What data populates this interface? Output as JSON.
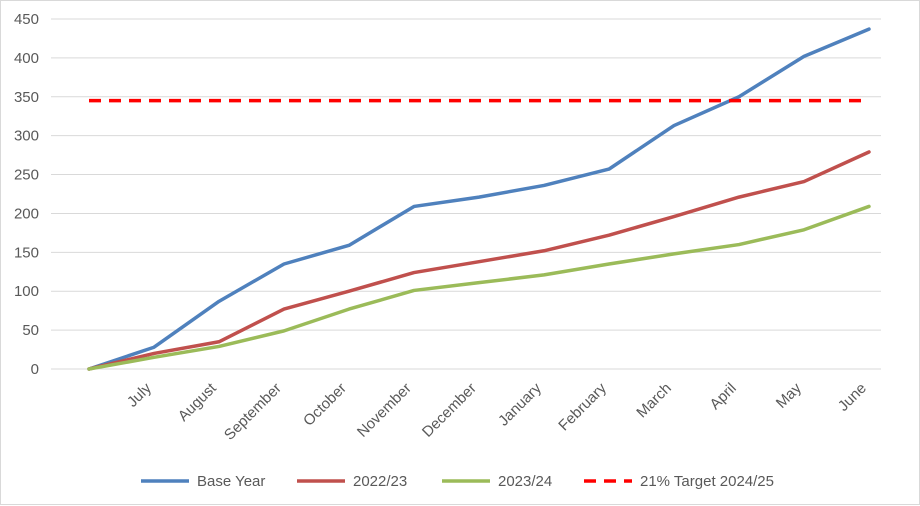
{
  "chart_data": {
    "type": "line",
    "title": "",
    "xlabel": "",
    "ylabel": "",
    "ylim": [
      0,
      450
    ],
    "y_ticks": [
      0,
      50,
      100,
      150,
      200,
      250,
      300,
      350,
      400,
      450
    ],
    "y_tick_labels": [
      "0",
      "50",
      "100",
      "150",
      "200",
      "250",
      "300",
      "350",
      "400",
      "450"
    ],
    "categories": [
      "",
      "July",
      "August",
      "September",
      "October",
      "November",
      "December",
      "January",
      "February",
      "March",
      "April",
      "May",
      "June"
    ],
    "grid": "horizontal",
    "legend_position": "bottom",
    "series": [
      {
        "name": "Base Year",
        "color": "#4f81bd",
        "style": "solid",
        "values": [
          0,
          28,
          87,
          135,
          159,
          209,
          221,
          236,
          257,
          313,
          350,
          402,
          437
        ]
      },
      {
        "name": "2022/23",
        "color": "#c0504d",
        "style": "solid",
        "values": [
          0,
          20,
          35,
          77,
          100,
          124,
          138,
          152,
          172,
          196,
          221,
          241,
          279
        ]
      },
      {
        "name": "2023/24",
        "color": "#9bbb59",
        "style": "solid",
        "values": [
          0,
          15,
          29,
          49,
          77,
          101,
          111,
          121,
          135,
          148,
          160,
          179,
          209
        ]
      },
      {
        "name": "21% Target 2024/25",
        "color": "#ff0000",
        "style": "dashed",
        "values": [
          345,
          345,
          345,
          345,
          345,
          345,
          345,
          345,
          345,
          345,
          345,
          345,
          345
        ]
      }
    ]
  }
}
